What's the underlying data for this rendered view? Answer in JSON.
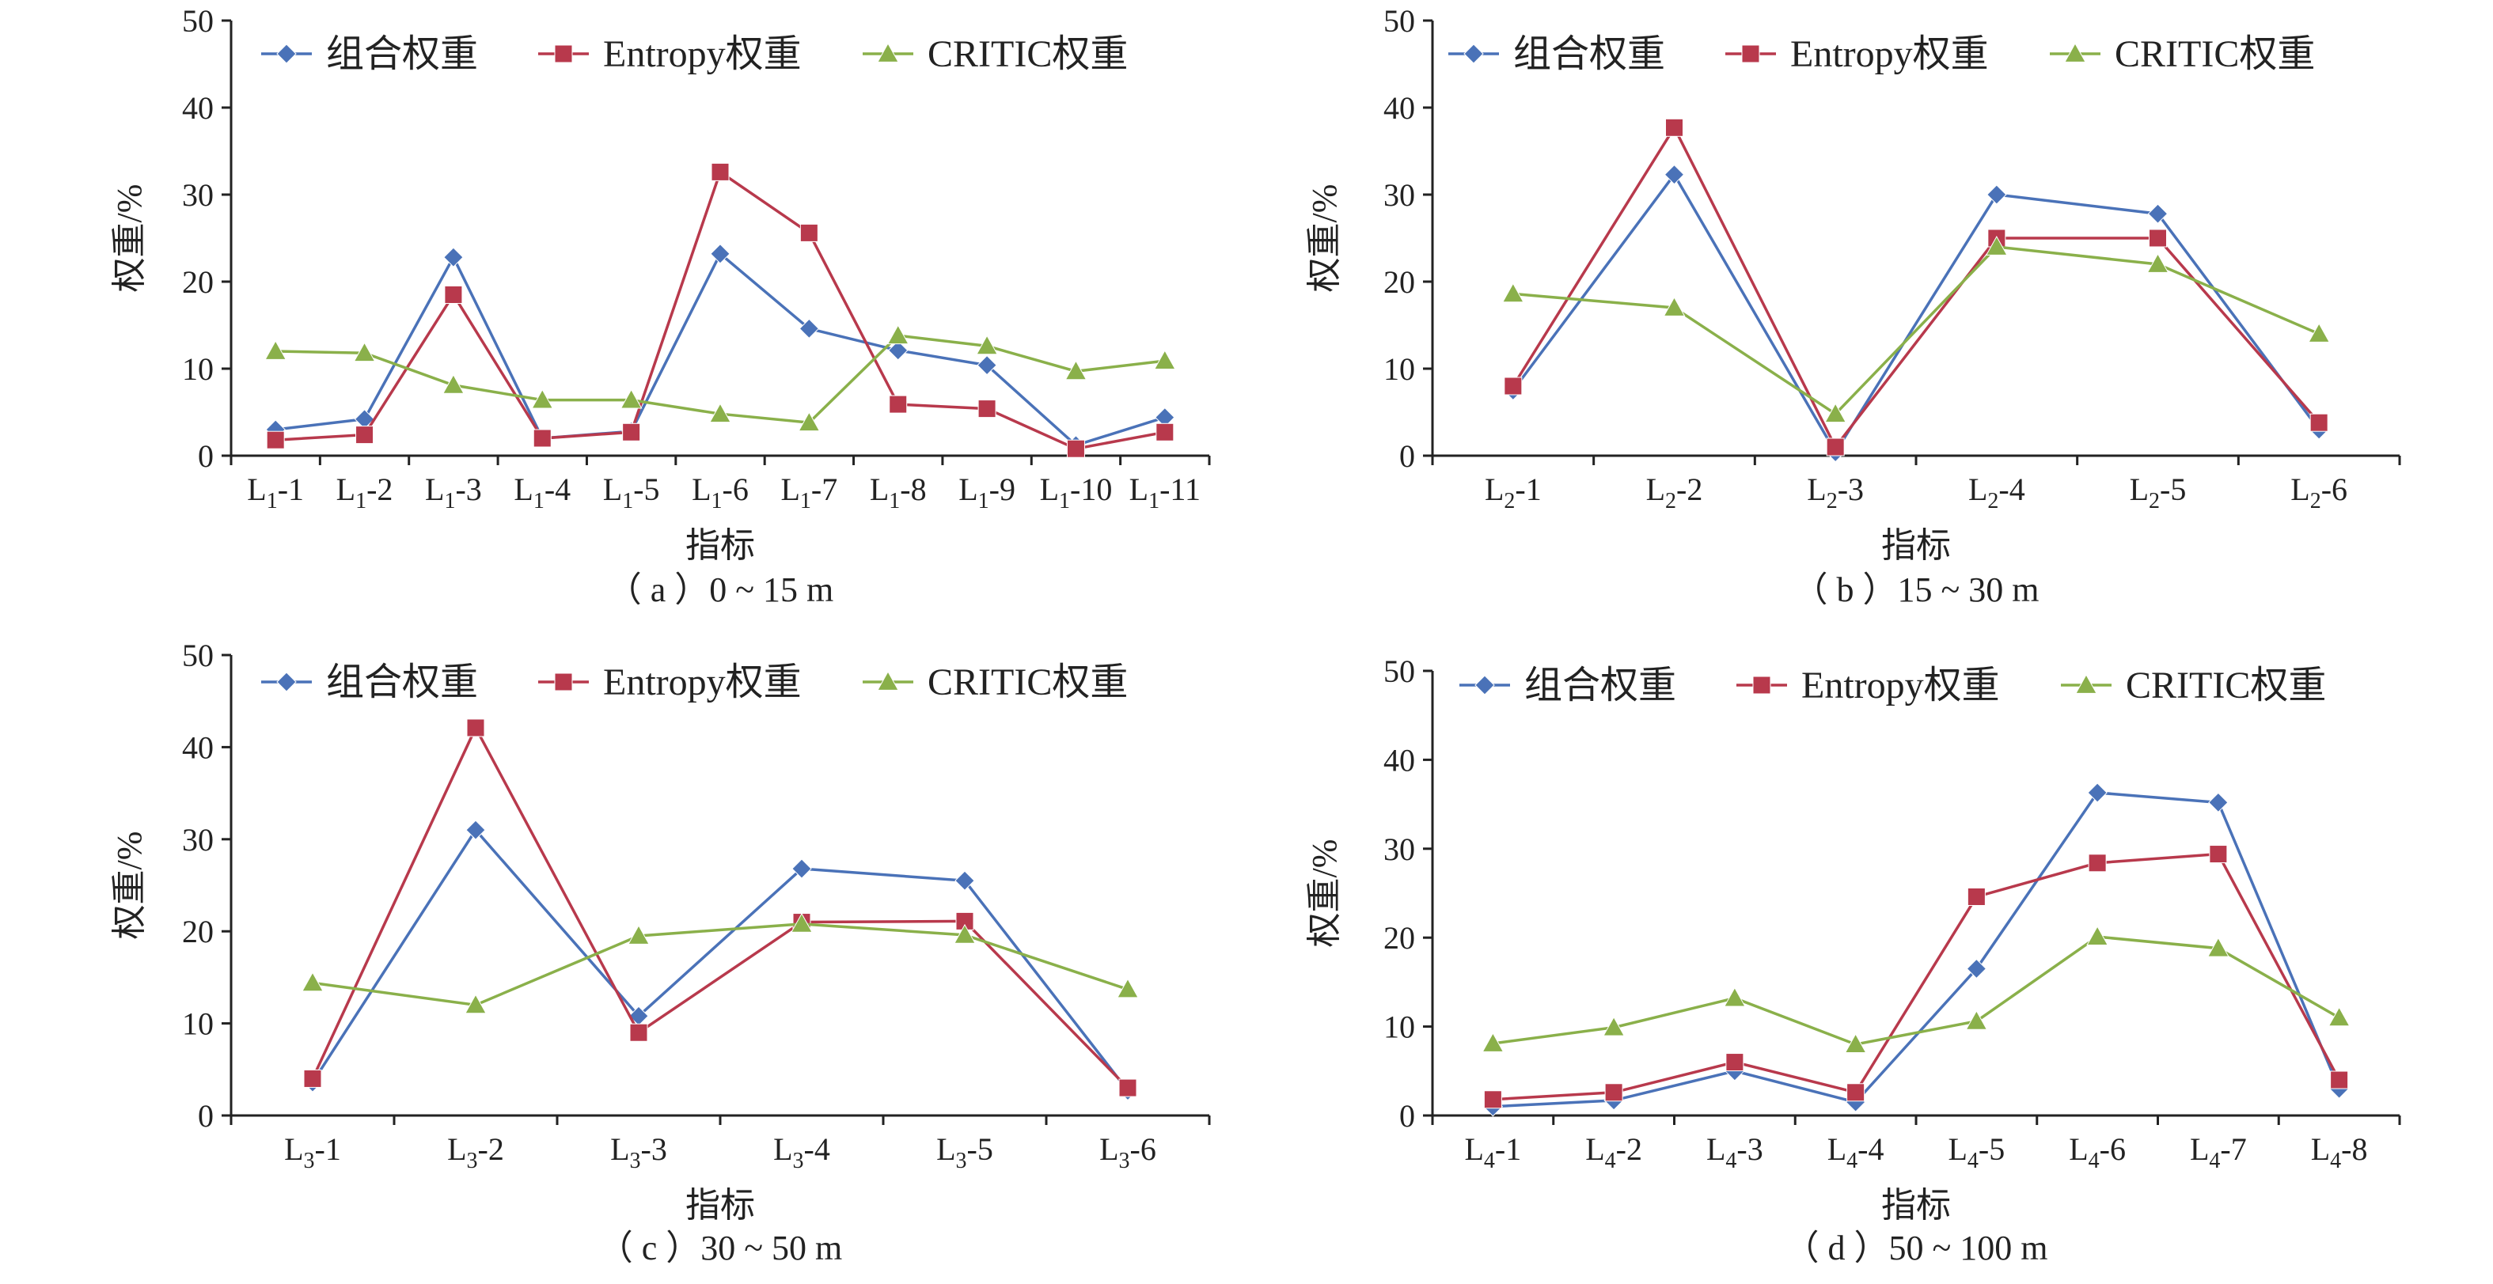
{
  "colors": {
    "combined": "#4a72b8",
    "entropy": "#b8394c",
    "critic": "#8ab04a"
  },
  "chart_data": [
    {
      "type": "line",
      "caption": "（ a ）0 ~ 15 m",
      "xlabel": "指标",
      "ylabel": "权重/%",
      "ylim": [
        0,
        50
      ],
      "yticks": [
        "0",
        "10",
        "20",
        "30",
        "40",
        "50"
      ],
      "categories": [
        {
          "prefix": "L",
          "sub": "1",
          "suffix": "-1"
        },
        {
          "prefix": "L",
          "sub": "1",
          "suffix": "-2"
        },
        {
          "prefix": "L",
          "sub": "1",
          "suffix": "-3"
        },
        {
          "prefix": "L",
          "sub": "1",
          "suffix": "-4"
        },
        {
          "prefix": "L",
          "sub": "1",
          "suffix": "-5"
        },
        {
          "prefix": "L",
          "sub": "1",
          "suffix": "-6"
        },
        {
          "prefix": "L",
          "sub": "1",
          "suffix": "-7"
        },
        {
          "prefix": "L",
          "sub": "1",
          "suffix": "-8"
        },
        {
          "prefix": "L",
          "sub": "1",
          "suffix": "-9"
        },
        {
          "prefix": "L",
          "sub": "1",
          "suffix": "-10"
        },
        {
          "prefix": "L",
          "sub": "1",
          "suffix": "-11"
        }
      ],
      "legend_position": "top",
      "series": [
        {
          "name": "组合权重",
          "key": "combined",
          "marker": "diamond",
          "values": [
            3.0,
            4.2,
            22.8,
            2.0,
            2.8,
            23.2,
            14.6,
            12.1,
            10.4,
            1.2,
            4.4
          ]
        },
        {
          "name": "Entropy权重",
          "key": "entropy",
          "marker": "square",
          "values": [
            1.8,
            2.4,
            18.5,
            2.0,
            2.7,
            32.6,
            25.6,
            5.9,
            5.4,
            0.8,
            2.7
          ]
        },
        {
          "name": "CRITIC权重",
          "key": "critic",
          "marker": "triangle",
          "values": [
            12.0,
            11.8,
            8.1,
            6.4,
            6.4,
            4.8,
            3.8,
            13.8,
            12.6,
            9.7,
            10.9
          ]
        }
      ]
    },
    {
      "type": "line",
      "caption": "（ b ）15 ~ 30 m",
      "xlabel": "指标",
      "ylabel": "权重/%",
      "ylim": [
        0,
        50
      ],
      "yticks": [
        "0",
        "10",
        "20",
        "30",
        "40",
        "50"
      ],
      "categories": [
        {
          "prefix": "L",
          "sub": "2",
          "suffix": "-1"
        },
        {
          "prefix": "L",
          "sub": "2",
          "suffix": "-2"
        },
        {
          "prefix": "L",
          "sub": "2",
          "suffix": "-3"
        },
        {
          "prefix": "L",
          "sub": "2",
          "suffix": "-4"
        },
        {
          "prefix": "L",
          "sub": "2",
          "suffix": "-5"
        },
        {
          "prefix": "L",
          "sub": "2",
          "suffix": "-6"
        }
      ],
      "legend_position": "top",
      "series": [
        {
          "name": "组合权重",
          "key": "combined",
          "marker": "diamond",
          "values": [
            7.5,
            32.3,
            0.4,
            30.0,
            27.8,
            3.0
          ]
        },
        {
          "name": "Entropy权重",
          "key": "entropy",
          "marker": "square",
          "values": [
            8.0,
            37.7,
            1.0,
            25.0,
            25.0,
            3.8
          ]
        },
        {
          "name": "CRITIC权重",
          "key": "critic",
          "marker": "triangle",
          "values": [
            18.6,
            17.0,
            4.8,
            24.0,
            22.0,
            14.0
          ]
        }
      ]
    },
    {
      "type": "line",
      "caption": "（ c ）30 ~ 50 m",
      "xlabel": "指标",
      "ylabel": "权重/%",
      "ylim": [
        0,
        50
      ],
      "yticks": [
        "0",
        "10",
        "20",
        "30",
        "40",
        "50"
      ],
      "categories": [
        {
          "prefix": "L",
          "sub": "3",
          "suffix": "-1"
        },
        {
          "prefix": "L",
          "sub": "3",
          "suffix": "-2"
        },
        {
          "prefix": "L",
          "sub": "3",
          "suffix": "-3"
        },
        {
          "prefix": "L",
          "sub": "3",
          "suffix": "-4"
        },
        {
          "prefix": "L",
          "sub": "3",
          "suffix": "-5"
        },
        {
          "prefix": "L",
          "sub": "3",
          "suffix": "-6"
        }
      ],
      "legend_position": "top",
      "series": [
        {
          "name": "组合权重",
          "key": "combined",
          "marker": "diamond",
          "values": [
            3.6,
            31.0,
            10.8,
            26.8,
            25.5,
            2.7
          ]
        },
        {
          "name": "Entropy权重",
          "key": "entropy",
          "marker": "square",
          "values": [
            4.0,
            42.1,
            9.0,
            21.0,
            21.1,
            3.0
          ]
        },
        {
          "name": "CRITIC权重",
          "key": "critic",
          "marker": "triangle",
          "values": [
            14.4,
            12.0,
            19.5,
            20.8,
            19.6,
            13.7
          ]
        }
      ]
    },
    {
      "type": "line",
      "caption": "（ d ）50 ~ 100 m",
      "xlabel": "指标",
      "ylabel": "权重/%",
      "ylim": [
        0,
        50
      ],
      "yticks": [
        "0",
        "10",
        "20",
        "30",
        "40",
        "50"
      ],
      "categories": [
        {
          "prefix": "L",
          "sub": "4",
          "suffix": "-1"
        },
        {
          "prefix": "L",
          "sub": "4",
          "suffix": "-2"
        },
        {
          "prefix": "L",
          "sub": "4",
          "suffix": "-3"
        },
        {
          "prefix": "L",
          "sub": "4",
          "suffix": "-4"
        },
        {
          "prefix": "L",
          "sub": "4",
          "suffix": "-5"
        },
        {
          "prefix": "L",
          "sub": "4",
          "suffix": "-6"
        },
        {
          "prefix": "L",
          "sub": "4",
          "suffix": "-7"
        },
        {
          "prefix": "L",
          "sub": "4",
          "suffix": "-8"
        }
      ],
      "legend_position": "top",
      "series": [
        {
          "name": "组合权重",
          "key": "combined",
          "marker": "diamond",
          "values": [
            1.0,
            1.7,
            5.0,
            1.5,
            16.5,
            36.3,
            35.2,
            3.0
          ]
        },
        {
          "name": "Entropy权重",
          "key": "entropy",
          "marker": "square",
          "values": [
            1.8,
            2.6,
            6.0,
            2.6,
            24.6,
            28.4,
            29.4,
            4.0
          ]
        },
        {
          "name": "CRITIC权重",
          "key": "critic",
          "marker": "triangle",
          "values": [
            8.1,
            9.9,
            13.2,
            8.0,
            10.6,
            20.1,
            18.8,
            11.0
          ]
        }
      ]
    }
  ]
}
